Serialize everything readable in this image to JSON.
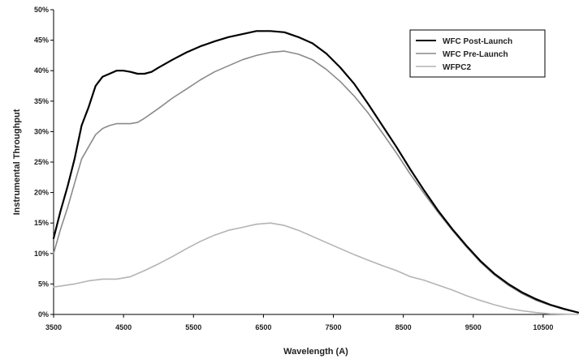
{
  "chart_data": {
    "type": "line",
    "title": "",
    "xlabel": "Wavelength (A)",
    "ylabel": "Instrumental Throughput",
    "xlim": [
      3500,
      11000
    ],
    "ylim": [
      0,
      50
    ],
    "x_ticks": [
      3500,
      4500,
      5500,
      6500,
      7500,
      8500,
      9500,
      10500
    ],
    "x_tick_labels": [
      "3500",
      "4500",
      "5500",
      "6500",
      "7500",
      "8500",
      "9500",
      "10500"
    ],
    "y_ticks": [
      0,
      5,
      10,
      15,
      20,
      25,
      30,
      35,
      40,
      45,
      50
    ],
    "y_tick_labels": [
      "0%",
      "5%",
      "10%",
      "15%",
      "20%",
      "25%",
      "30%",
      "35%",
      "40%",
      "45%",
      "50%"
    ],
    "grid": false,
    "legend_position": "top-right",
    "series": [
      {
        "name": "WFC Post-Launch",
        "color": "#000000",
        "stroke": "solid",
        "x": [
          3500,
          3600,
          3700,
          3800,
          3900,
          4000,
          4100,
          4200,
          4300,
          4400,
          4500,
          4600,
          4700,
          4800,
          4900,
          5000,
          5200,
          5400,
          5600,
          5800,
          6000,
          6200,
          6400,
          6600,
          6800,
          7000,
          7200,
          7400,
          7600,
          7800,
          8000,
          8200,
          8400,
          8600,
          8800,
          9000,
          9200,
          9400,
          9600,
          9800,
          10000,
          10200,
          10400,
          10600,
          10800,
          11000
        ],
        "y": [
          12.5,
          17,
          21,
          25.5,
          31,
          34,
          37.5,
          39,
          39.5,
          40,
          40,
          39.8,
          39.5,
          39.5,
          39.8,
          40.5,
          41.8,
          43,
          44,
          44.8,
          45.5,
          46,
          46.5,
          46.5,
          46.3,
          45.5,
          44.5,
          42.8,
          40.5,
          37.8,
          34.5,
          31,
          27.5,
          23.8,
          20.3,
          17,
          14,
          11.3,
          8.8,
          6.7,
          5,
          3.6,
          2.5,
          1.6,
          0.9,
          0.3
        ]
      },
      {
        "name": "WFC Pre-Launch",
        "color": "#8a8a8a",
        "stroke": "solid",
        "x": [
          3500,
          3600,
          3700,
          3800,
          3900,
          4000,
          4100,
          4200,
          4300,
          4400,
          4500,
          4600,
          4700,
          4800,
          4900,
          5000,
          5200,
          5400,
          5600,
          5800,
          6000,
          6200,
          6400,
          6600,
          6800,
          7000,
          7200,
          7400,
          7600,
          7800,
          8000,
          8200,
          8400,
          8600,
          8800,
          9000,
          9200,
          9400,
          9600,
          9800,
          10000,
          10200,
          10400,
          10600,
          10800,
          11000
        ],
        "y": [
          10,
          14,
          17.5,
          21.5,
          25.5,
          27.5,
          29.5,
          30.5,
          31,
          31.3,
          31.3,
          31.3,
          31.5,
          32.2,
          33,
          33.8,
          35.5,
          37,
          38.5,
          39.8,
          40.8,
          41.8,
          42.5,
          43,
          43.2,
          42.7,
          41.8,
          40.2,
          38.2,
          35.8,
          33,
          29.8,
          26.5,
          23,
          19.8,
          16.7,
          13.8,
          11.1,
          8.6,
          6.5,
          4.8,
          3.4,
          2.3,
          1.5,
          0.8,
          0.3
        ]
      },
      {
        "name": "WFPC2",
        "color": "#b4b4b4",
        "stroke": "solid",
        "x": [
          3500,
          3800,
          4000,
          4200,
          4400,
          4600,
          4800,
          5000,
          5200,
          5400,
          5600,
          5800,
          6000,
          6200,
          6400,
          6600,
          6800,
          7000,
          7200,
          7400,
          7600,
          7800,
          8000,
          8200,
          8400,
          8600,
          8800,
          9000,
          9200,
          9400,
          9600,
          9800,
          10000,
          10200,
          10400,
          10600,
          11000
        ],
        "y": [
          4.5,
          5,
          5.5,
          5.8,
          5.8,
          6.2,
          7.2,
          8.3,
          9.5,
          10.8,
          12,
          13,
          13.8,
          14.3,
          14.8,
          15,
          14.6,
          13.8,
          12.8,
          11.8,
          10.8,
          9.8,
          8.9,
          8,
          7.2,
          6.2,
          5.6,
          4.8,
          4,
          3.1,
          2.3,
          1.6,
          1,
          0.6,
          0.3,
          0.1,
          0
        ]
      }
    ]
  }
}
